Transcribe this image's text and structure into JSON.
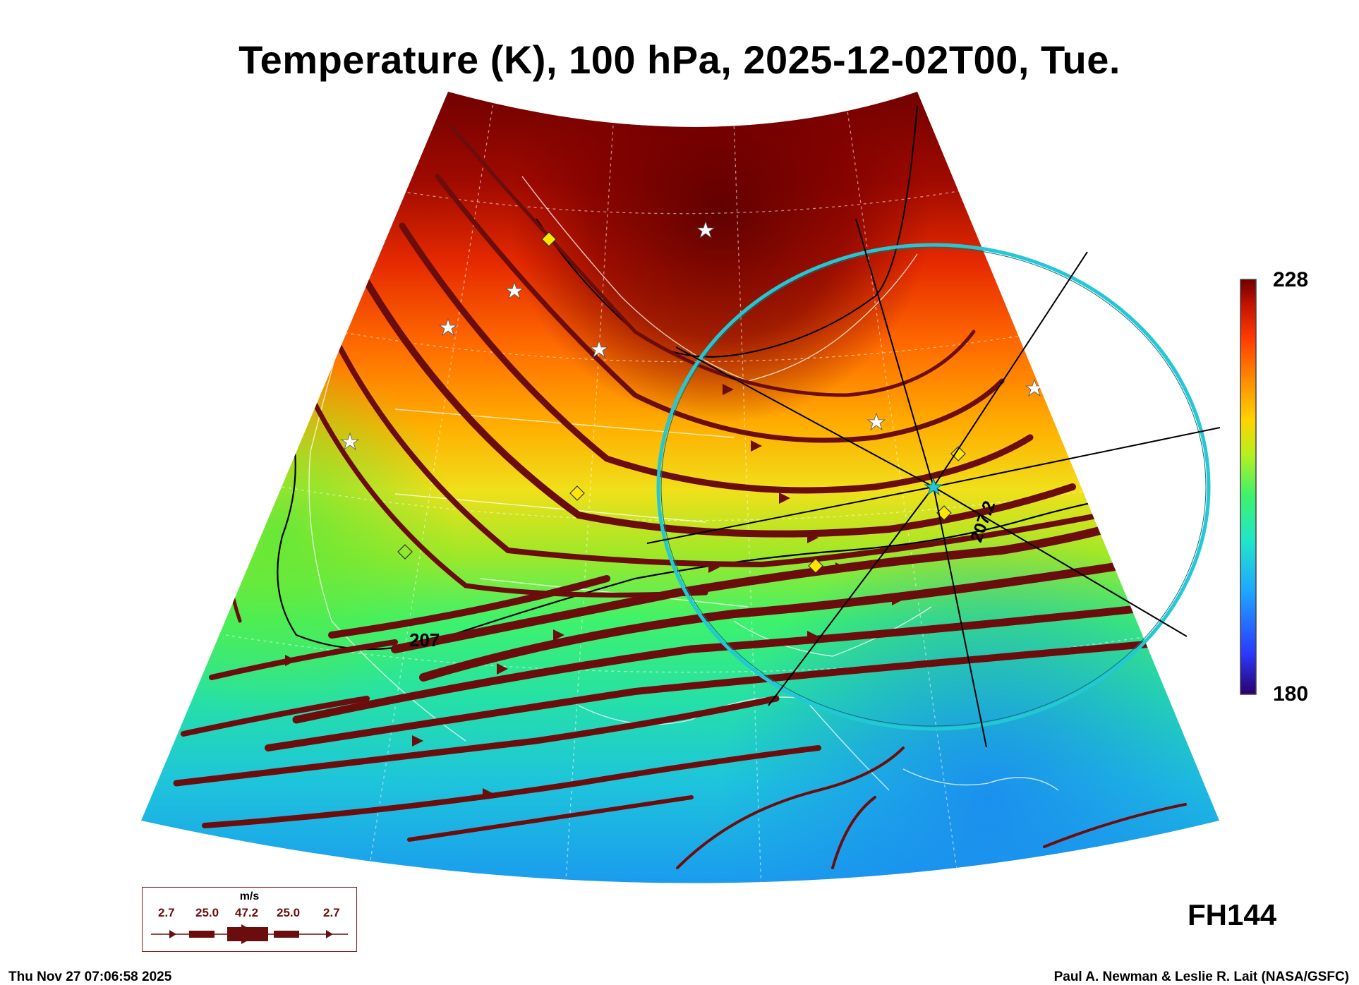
{
  "title": "Temperature (K), 100 hPa, 2025-12-02T00, Tue.",
  "colorbar": {
    "max_label": "228",
    "min_label": "180",
    "colors": [
      "#2a006e",
      "#2a3bff",
      "#1ea7ff",
      "#21e6c8",
      "#3ef26b",
      "#b9ef1e",
      "#ffd400",
      "#ff8a00",
      "#ff3a00",
      "#c41200",
      "#6e0000"
    ]
  },
  "contour_labels": [
    "207",
    "207.2"
  ],
  "forecast_hour": "FH144",
  "legend": {
    "unit": "m/s",
    "speeds": [
      "2.7",
      "25.0",
      "47.2",
      "25.0",
      "2.7"
    ]
  },
  "footer": {
    "timestamp": "Thu Nov 27 07:06:58 2025",
    "credit": "Paul A. Newman & Leslie R. Lait (NASA/GSFC)"
  },
  "colors": {
    "streamline": "#6b0d0d",
    "range_ring": "#22c8d4",
    "markers": "#ffe500"
  },
  "icons": [
    "star-marker-icon",
    "diamond-marker-icon",
    "center-star-icon",
    "arrowhead-icon"
  ]
}
